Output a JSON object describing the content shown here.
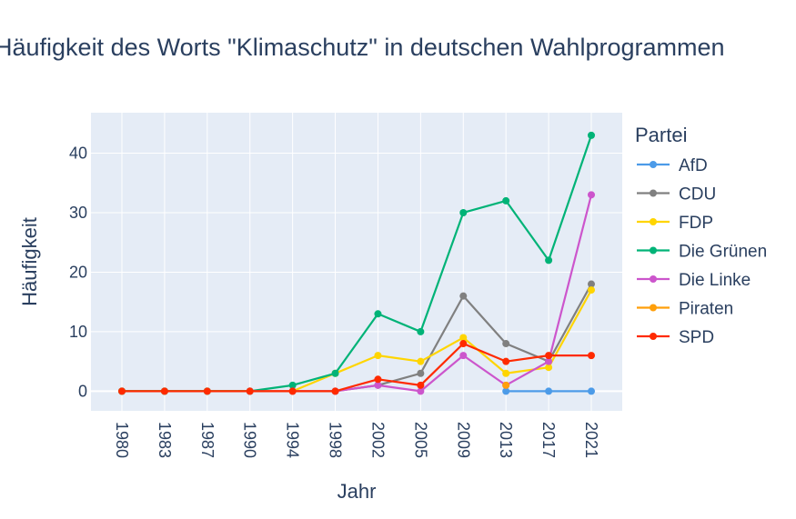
{
  "chart_data": {
    "type": "line",
    "title": "Häufigkeit des Worts \"Klimaschutz\" in deutschen Wahlprogrammen",
    "xlabel": "Jahr",
    "ylabel": "Häufigkeit",
    "categories": [
      "1980",
      "1983",
      "1987",
      "1990",
      "1994",
      "1998",
      "2002",
      "2005",
      "2009",
      "2013",
      "2017",
      "2021"
    ],
    "y_ticks": [
      "0",
      "10",
      "20",
      "30",
      "40"
    ],
    "ylim": [
      -3.3,
      46.8
    ],
    "grid": true,
    "legend": {
      "title": "Partei",
      "position": "right"
    },
    "series": [
      {
        "name": "AfD",
        "color": "#4c9be8",
        "values": [
          null,
          null,
          null,
          null,
          null,
          null,
          null,
          null,
          null,
          0,
          0,
          0
        ]
      },
      {
        "name": "CDU",
        "color": "#808080",
        "values": [
          0,
          0,
          0,
          0,
          0,
          0,
          1,
          3,
          16,
          8,
          5,
          18
        ]
      },
      {
        "name": "FDP",
        "color": "#ffd500",
        "values": [
          0,
          0,
          0,
          0,
          0,
          3,
          6,
          5,
          9,
          3,
          4,
          17
        ]
      },
      {
        "name": "Die Grünen",
        "color": "#00b377",
        "values": [
          0,
          0,
          0,
          0,
          1,
          3,
          13,
          10,
          30,
          32,
          22,
          43
        ]
      },
      {
        "name": "Die Linke",
        "color": "#cc55cc",
        "values": [
          null,
          null,
          null,
          0,
          0,
          0,
          1,
          0,
          6,
          1,
          5,
          33
        ]
      },
      {
        "name": "Piraten",
        "color": "#ff9f0a",
        "values": [
          null,
          null,
          null,
          null,
          null,
          null,
          null,
          null,
          null,
          1,
          null,
          null
        ]
      },
      {
        "name": "SPD",
        "color": "#ff2a00",
        "values": [
          0,
          0,
          0,
          0,
          0,
          0,
          2,
          1,
          8,
          5,
          6,
          6
        ]
      }
    ]
  }
}
